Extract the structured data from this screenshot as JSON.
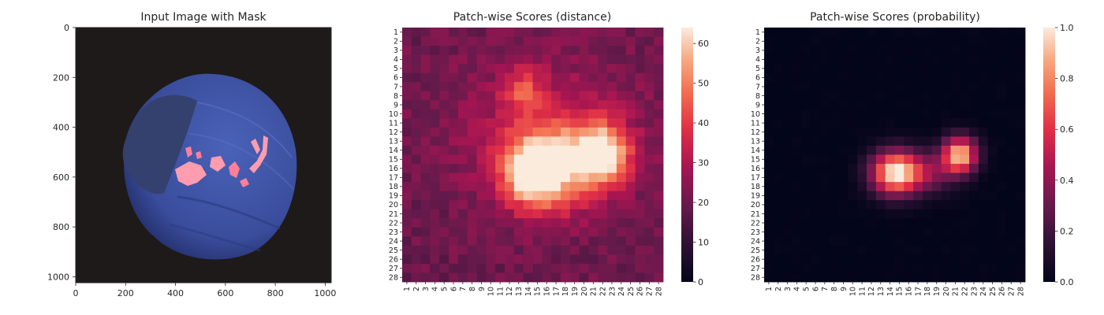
{
  "colors": {
    "background": "#ffffff",
    "image_bg": "#1e1a19",
    "nut_fill": "#3b4f9e",
    "nut_dark": "#1f2a63",
    "cap_fill": "#34406e",
    "mask_highlight": "#ff9cae",
    "axis": "#262626",
    "colormap": "rocket"
  },
  "chart_data": [
    {
      "type": "image",
      "title": "Input Image with Mask",
      "x_ticks": [
        0,
        200,
        400,
        600,
        800,
        1000
      ],
      "y_ticks": [
        0,
        200,
        400,
        600,
        800,
        1000
      ],
      "xlim": [
        0,
        1024
      ],
      "ylim": [
        1024,
        0
      ]
    },
    {
      "type": "heatmap",
      "title": "Patch-wise Scores (distance)",
      "rows": 28,
      "cols": 28,
      "row_labels": [
        "1",
        "2",
        "3",
        "4",
        "5",
        "6",
        "7",
        "8",
        "9",
        "10",
        "11",
        "12",
        "13",
        "14",
        "15",
        "16",
        "17",
        "18",
        "19",
        "20",
        "21",
        "22",
        "23",
        "24",
        "25",
        "26",
        "27",
        "28"
      ],
      "col_labels": [
        "1",
        "2",
        "3",
        "4",
        "5",
        "6",
        "7",
        "8",
        "9",
        "10",
        "11",
        "12",
        "13",
        "14",
        "15",
        "16",
        "17",
        "18",
        "19",
        "20",
        "21",
        "22",
        "23",
        "24",
        "25",
        "26",
        "27",
        "28"
      ],
      "vmin": 0,
      "vmax": 64,
      "colorbar_ticks": [
        0,
        10,
        20,
        30,
        40,
        50,
        60
      ],
      "baseline": 20,
      "hotspots": [
        {
          "row": 16.5,
          "col": 14.5,
          "peak": 44,
          "sigma_row": 2.6,
          "sigma_col": 2.4
        },
        {
          "row": 14.5,
          "col": 22.0,
          "peak": 42,
          "sigma_row": 2.2,
          "sigma_col": 2.0
        },
        {
          "row": 15.5,
          "col": 18.0,
          "peak": 22,
          "sigma_row": 3.5,
          "sigma_col": 3.0
        },
        {
          "row": 7.5,
          "col": 13.5,
          "peak": 17,
          "sigma_row": 1.8,
          "sigma_col": 1.5
        },
        {
          "row": 12.0,
          "col": 16.0,
          "peak": 12,
          "sigma_row": 5.5,
          "sigma_col": 7.0
        }
      ]
    },
    {
      "type": "heatmap",
      "title": "Patch-wise Scores (probability)",
      "rows": 28,
      "cols": 28,
      "row_labels": [
        "1",
        "2",
        "3",
        "4",
        "5",
        "6",
        "7",
        "8",
        "9",
        "10",
        "11",
        "12",
        "13",
        "14",
        "15",
        "16",
        "17",
        "18",
        "19",
        "20",
        "21",
        "22",
        "23",
        "24",
        "25",
        "26",
        "27",
        "28"
      ],
      "col_labels": [
        "1",
        "2",
        "3",
        "4",
        "5",
        "6",
        "7",
        "8",
        "9",
        "10",
        "11",
        "12",
        "13",
        "14",
        "15",
        "16",
        "17",
        "18",
        "19",
        "20",
        "21",
        "22",
        "23",
        "24",
        "25",
        "26",
        "27",
        "28"
      ],
      "vmin": 0.0,
      "vmax": 1.0,
      "colorbar_ticks": [
        "0.0",
        "0.2",
        "0.4",
        "0.6",
        "0.8",
        "1.0"
      ],
      "baseline": 0,
      "hotspots": [
        {
          "row": 16.5,
          "col": 14.5,
          "peak": 0.95,
          "sigma_row": 1.7,
          "sigma_col": 1.8
        },
        {
          "row": 14.5,
          "col": 21.5,
          "peak": 0.92,
          "sigma_row": 1.4,
          "sigma_col": 1.3
        },
        {
          "row": 16.5,
          "col": 18.0,
          "peak": 0.35,
          "sigma_row": 1.6,
          "sigma_col": 2.2
        }
      ]
    }
  ]
}
